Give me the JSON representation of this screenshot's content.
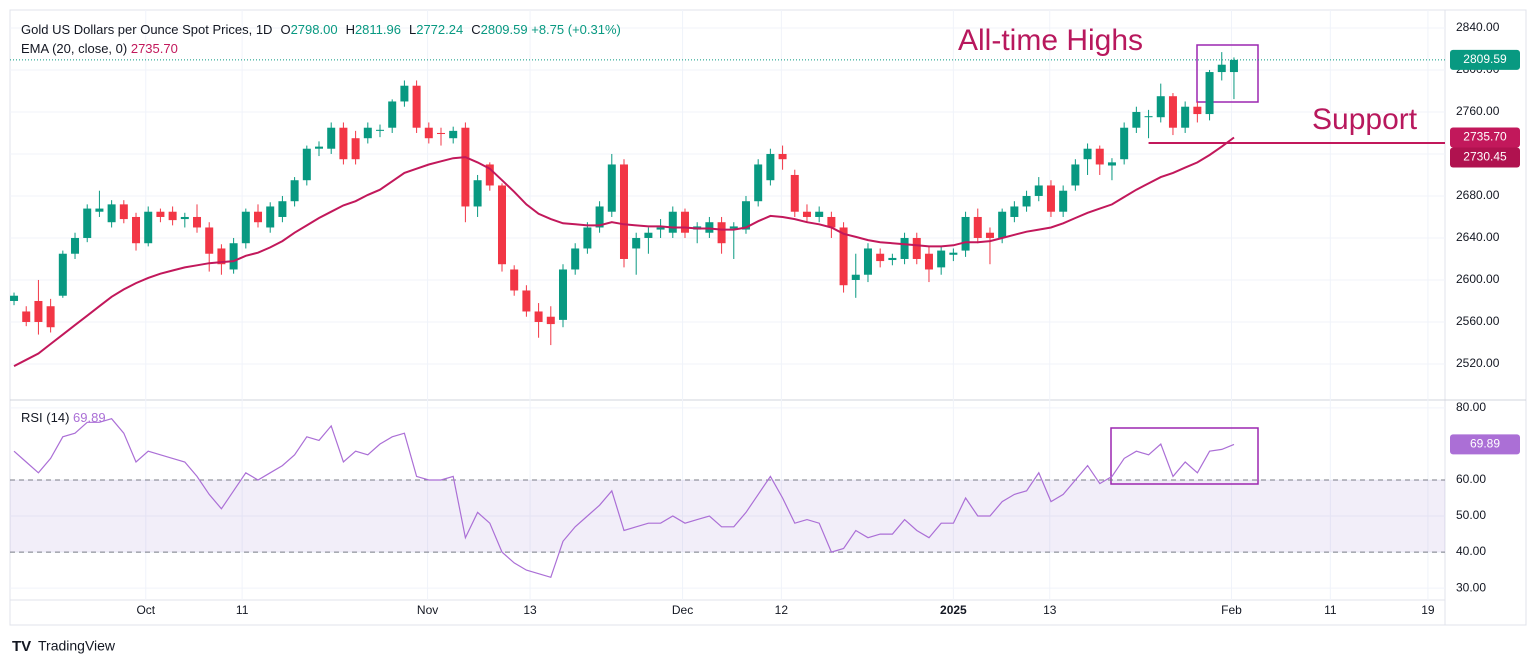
{
  "header": {
    "ohlc": [
      {
        "key": "O",
        "label": "2798.00"
      },
      {
        "key": "H",
        "label": "2811.96"
      },
      {
        "key": "L",
        "label": "2772.24"
      },
      {
        "key": "C",
        "label": "2809.59"
      }
    ],
    "change": "+8.75 (+0.31%)"
  },
  "footer": {
    "brand": "TradingView"
  },
  "chart_data": [
    {
      "type": "candlestick",
      "title": "Gold US Dollars per Ounce Spot Prices, 1D",
      "up_color": "#089981",
      "down_color": "#f23645",
      "xlim": [
        -0.33,
        117.3
      ],
      "xticks": [
        {
          "value": 10.8,
          "label": "Oct"
        },
        {
          "value": 18.7,
          "label": "11"
        },
        {
          "value": 33.9,
          "label": "Nov"
        },
        {
          "value": 42.3,
          "label": "13"
        },
        {
          "value": 54.8,
          "label": "Dec"
        },
        {
          "value": 62.9,
          "label": "12"
        },
        {
          "value": 77,
          "label": "2025"
        },
        {
          "value": 84.9,
          "label": "13"
        },
        {
          "value": 99.8,
          "label": "Feb"
        },
        {
          "value": 107.9,
          "label": "11"
        },
        {
          "value": 115.9,
          "label": "19"
        }
      ],
      "ylim": [
        2485.7,
        2857.1
      ],
      "yticks": [
        {
          "value": 2520,
          "label": "2520.00"
        },
        {
          "value": 2560,
          "label": "2560.00"
        },
        {
          "value": 2600,
          "label": "2600.00"
        },
        {
          "value": 2640,
          "label": "2640.00"
        },
        {
          "value": 2680,
          "label": "2680.00"
        },
        {
          "value": 2720,
          "label": "2720.00"
        },
        {
          "value": 2760,
          "label": "2760.00"
        },
        {
          "value": 2800,
          "label": "2800.00"
        },
        {
          "value": 2840,
          "label": "2840.00"
        }
      ],
      "grid": true,
      "last_label": "2809.59",
      "support": {
        "value": 2730.45,
        "label": "2730.45",
        "text": "Support"
      },
      "annotation": "All-time Highs",
      "ohlc": [
        [
          2580,
          2588,
          2576,
          2585
        ],
        [
          2570,
          2575,
          2556,
          2560
        ],
        [
          2580,
          2600,
          2548,
          2560
        ],
        [
          2575,
          2582,
          2550,
          2555
        ],
        [
          2585,
          2628,
          2583,
          2625
        ],
        [
          2625,
          2645,
          2620,
          2640
        ],
        [
          2640,
          2672,
          2636,
          2668
        ],
        [
          2665,
          2685,
          2660,
          2668
        ],
        [
          2655,
          2676,
          2650,
          2672
        ],
        [
          2672,
          2676,
          2654,
          2658
        ],
        [
          2660,
          2664,
          2628,
          2635
        ],
        [
          2635,
          2670,
          2632,
          2665
        ],
        [
          2665,
          2668,
          2655,
          2660
        ],
        [
          2665,
          2670,
          2652,
          2657
        ],
        [
          2658,
          2664,
          2650,
          2660
        ],
        [
          2660,
          2672,
          2645,
          2650
        ],
        [
          2650,
          2655,
          2608,
          2625
        ],
        [
          2630,
          2634,
          2605,
          2615
        ],
        [
          2610,
          2640,
          2606,
          2635
        ],
        [
          2635,
          2668,
          2630,
          2665
        ],
        [
          2665,
          2672,
          2650,
          2655
        ],
        [
          2650,
          2674,
          2645,
          2670
        ],
        [
          2660,
          2680,
          2655,
          2675
        ],
        [
          2675,
          2698,
          2670,
          2695
        ],
        [
          2695,
          2728,
          2690,
          2725
        ],
        [
          2725,
          2732,
          2718,
          2727
        ],
        [
          2725,
          2750,
          2720,
          2745
        ],
        [
          2745,
          2750,
          2710,
          2715
        ],
        [
          2735,
          2742,
          2710,
          2715
        ],
        [
          2735,
          2750,
          2730,
          2745
        ],
        [
          2742,
          2748,
          2736,
          2743
        ],
        [
          2745,
          2772,
          2740,
          2770
        ],
        [
          2770,
          2790,
          2765,
          2785
        ],
        [
          2785,
          2790,
          2740,
          2745
        ],
        [
          2745,
          2750,
          2730,
          2735
        ],
        [
          2740,
          2745,
          2728,
          2739
        ],
        [
          2735,
          2746,
          2730,
          2742
        ],
        [
          2745,
          2750,
          2655,
          2670
        ],
        [
          2670,
          2700,
          2660,
          2695
        ],
        [
          2710,
          2712,
          2685,
          2690
        ],
        [
          2690,
          2692,
          2608,
          2615
        ],
        [
          2610,
          2614,
          2585,
          2590
        ],
        [
          2590,
          2595,
          2565,
          2570
        ],
        [
          2570,
          2578,
          2545,
          2560
        ],
        [
          2565,
          2575,
          2538,
          2558
        ],
        [
          2562,
          2615,
          2555,
          2610
        ],
        [
          2610,
          2635,
          2605,
          2630
        ],
        [
          2630,
          2655,
          2625,
          2650
        ],
        [
          2650,
          2675,
          2645,
          2670
        ],
        [
          2665,
          2720,
          2660,
          2710
        ],
        [
          2710,
          2715,
          2612,
          2620
        ],
        [
          2630,
          2645,
          2605,
          2640
        ],
        [
          2640,
          2650,
          2625,
          2645
        ],
        [
          2648,
          2658,
          2640,
          2650
        ],
        [
          2645,
          2670,
          2640,
          2665
        ],
        [
          2665,
          2668,
          2640,
          2645
        ],
        [
          2648,
          2655,
          2635,
          2651
        ],
        [
          2645,
          2660,
          2640,
          2655
        ],
        [
          2655,
          2660,
          2625,
          2635
        ],
        [
          2649,
          2655,
          2620,
          2651
        ],
        [
          2648,
          2680,
          2644,
          2675
        ],
        [
          2675,
          2715,
          2670,
          2710
        ],
        [
          2695,
          2725,
          2690,
          2720
        ],
        [
          2720,
          2728,
          2705,
          2715
        ],
        [
          2700,
          2705,
          2660,
          2665
        ],
        [
          2665,
          2672,
          2655,
          2660
        ],
        [
          2660,
          2670,
          2655,
          2665
        ],
        [
          2660,
          2665,
          2640,
          2650
        ],
        [
          2650,
          2655,
          2588,
          2595
        ],
        [
          2600,
          2625,
          2583,
          2605
        ],
        [
          2605,
          2635,
          2598,
          2630
        ],
        [
          2625,
          2630,
          2612,
          2618
        ],
        [
          2619,
          2625,
          2614,
          2621
        ],
        [
          2620,
          2645,
          2615,
          2640
        ],
        [
          2640,
          2645,
          2615,
          2620
        ],
        [
          2625,
          2632,
          2598,
          2610
        ],
        [
          2612,
          2632,
          2605,
          2628
        ],
        [
          2624,
          2630,
          2618,
          2626
        ],
        [
          2628,
          2665,
          2622,
          2660
        ],
        [
          2660,
          2668,
          2635,
          2640
        ],
        [
          2645,
          2650,
          2615,
          2640
        ],
        [
          2640,
          2668,
          2635,
          2665
        ],
        [
          2660,
          2675,
          2655,
          2670
        ],
        [
          2670,
          2685,
          2665,
          2680
        ],
        [
          2680,
          2698,
          2675,
          2690
        ],
        [
          2690,
          2695,
          2660,
          2665
        ],
        [
          2665,
          2690,
          2660,
          2685
        ],
        [
          2690,
          2715,
          2685,
          2710
        ],
        [
          2715,
          2730,
          2700,
          2725
        ],
        [
          2725,
          2728,
          2700,
          2710
        ],
        [
          2709,
          2716,
          2695,
          2712
        ],
        [
          2715,
          2750,
          2710,
          2745
        ],
        [
          2745,
          2765,
          2740,
          2760
        ],
        [
          2755,
          2762,
          2735,
          2756
        ],
        [
          2755,
          2787,
          2750,
          2775
        ],
        [
          2775,
          2778,
          2738,
          2745
        ],
        [
          2745,
          2770,
          2740,
          2765
        ],
        [
          2765,
          2770,
          2750,
          2758
        ],
        [
          2758,
          2800,
          2752,
          2798
        ],
        [
          2798,
          2817,
          2790,
          2805
        ],
        [
          2798,
          2811.96,
          2772.24,
          2809.59
        ]
      ],
      "series": [
        {
          "name": "EMA (20, close, 0)",
          "color": "#c2185b",
          "value_label": "2735.70",
          "values": [
            2518,
            2524,
            2530,
            2539,
            2548,
            2557,
            2566,
            2575,
            2584,
            2591,
            2597,
            2602,
            2606,
            2609,
            2612,
            2614,
            2616,
            2617,
            2618,
            2623,
            2626,
            2631,
            2637,
            2645,
            2652,
            2659,
            2665,
            2671,
            2675,
            2681,
            2686,
            2694,
            2702,
            2706,
            2710,
            2713,
            2716,
            2717,
            2712,
            2706,
            2695,
            2684,
            2672,
            2663,
            2658,
            2654,
            2653,
            2652,
            2652,
            2655,
            2653,
            2652,
            2651,
            2651,
            2650,
            2650,
            2649,
            2649,
            2648,
            2648,
            2650,
            2656,
            2661,
            2660,
            2658,
            2655,
            2653,
            2650,
            2644,
            2641,
            2638,
            2636,
            2635,
            2634,
            2633,
            2632,
            2632,
            2633,
            2636,
            2636,
            2637,
            2640,
            2643,
            2646,
            2648,
            2650,
            2654,
            2659,
            2664,
            2668,
            2672,
            2679,
            2686,
            2692,
            2698,
            2702,
            2707,
            2712,
            2719,
            2727,
            2735.7
          ]
        }
      ]
    },
    {
      "type": "line",
      "ylim": [
        26.7,
        82.2
      ],
      "yticks": [
        {
          "value": 30,
          "label": "30.00"
        },
        {
          "value": 40,
          "label": "40.00"
        },
        {
          "value": 50,
          "label": "50.00"
        },
        {
          "value": 60,
          "label": "60.00"
        },
        {
          "value": 80,
          "label": "80.00"
        }
      ],
      "band": [
        40,
        60
      ],
      "series": [
        {
          "name": "RSI (14)",
          "color": "#ab6fd6",
          "value_label": "69.89",
          "values": [
            68,
            65,
            62,
            66,
            72,
            73,
            76,
            76,
            77,
            73,
            65,
            68,
            67,
            66,
            65,
            61,
            56,
            52,
            57,
            62,
            60,
            62,
            64,
            67,
            72,
            71,
            75,
            65,
            68,
            67,
            70,
            72,
            73,
            61,
            60,
            60,
            61,
            44,
            51,
            48,
            40,
            37,
            35,
            34,
            33,
            43,
            47,
            50,
            53,
            57,
            46,
            47,
            48,
            48,
            50,
            48,
            49,
            50,
            47,
            47,
            51,
            56,
            61,
            55,
            48,
            49,
            48,
            40,
            41,
            46,
            44,
            45,
            45,
            49,
            46,
            44,
            48,
            48,
            55,
            50,
            50,
            54,
            56,
            57,
            62,
            54,
            56,
            60,
            64,
            59,
            61,
            66,
            68,
            67,
            70,
            61,
            65,
            62,
            68,
            68.5,
            69.89
          ]
        }
      ]
    }
  ]
}
